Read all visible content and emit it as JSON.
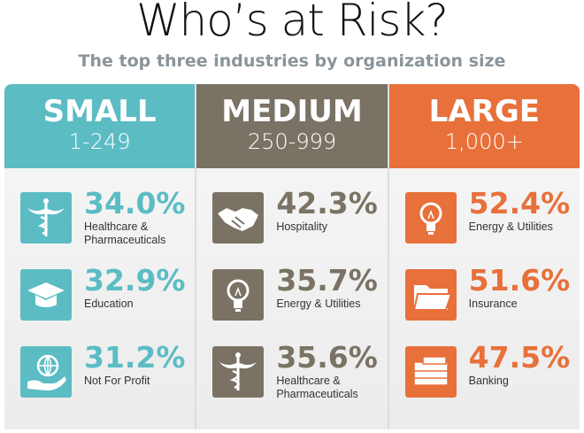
{
  "header": {
    "title": "Who’s at Risk?",
    "subtitle": "The top three industries by organization size"
  },
  "columns": [
    {
      "name": "SMALL",
      "range": "1-249",
      "items": [
        {
          "value": "34.0%",
          "label": "Healthcare & Pharmaceuticals",
          "icon": "caduceus"
        },
        {
          "value": "32.9%",
          "label": "Education",
          "icon": "cap"
        },
        {
          "value": "31.2%",
          "label": "Not For Profit",
          "icon": "globe"
        }
      ]
    },
    {
      "name": "MEDIUM",
      "range": "250-999",
      "items": [
        {
          "value": "42.3%",
          "label": "Hospitality",
          "icon": "handshake"
        },
        {
          "value": "35.7%",
          "label": "Energy & Utilities",
          "icon": "bulb"
        },
        {
          "value": "35.6%",
          "label": "Healthcare & Pharmaceuticals",
          "icon": "caduceus"
        }
      ]
    },
    {
      "name": "LARGE",
      "range": "1,000+",
      "items": [
        {
          "value": "52.4%",
          "label": "Energy & Utilities",
          "icon": "bulb"
        },
        {
          "value": "51.6%",
          "label": "Insurance",
          "icon": "folder"
        },
        {
          "value": "47.5%",
          "label": "Banking",
          "icon": "money"
        }
      ]
    }
  ]
}
